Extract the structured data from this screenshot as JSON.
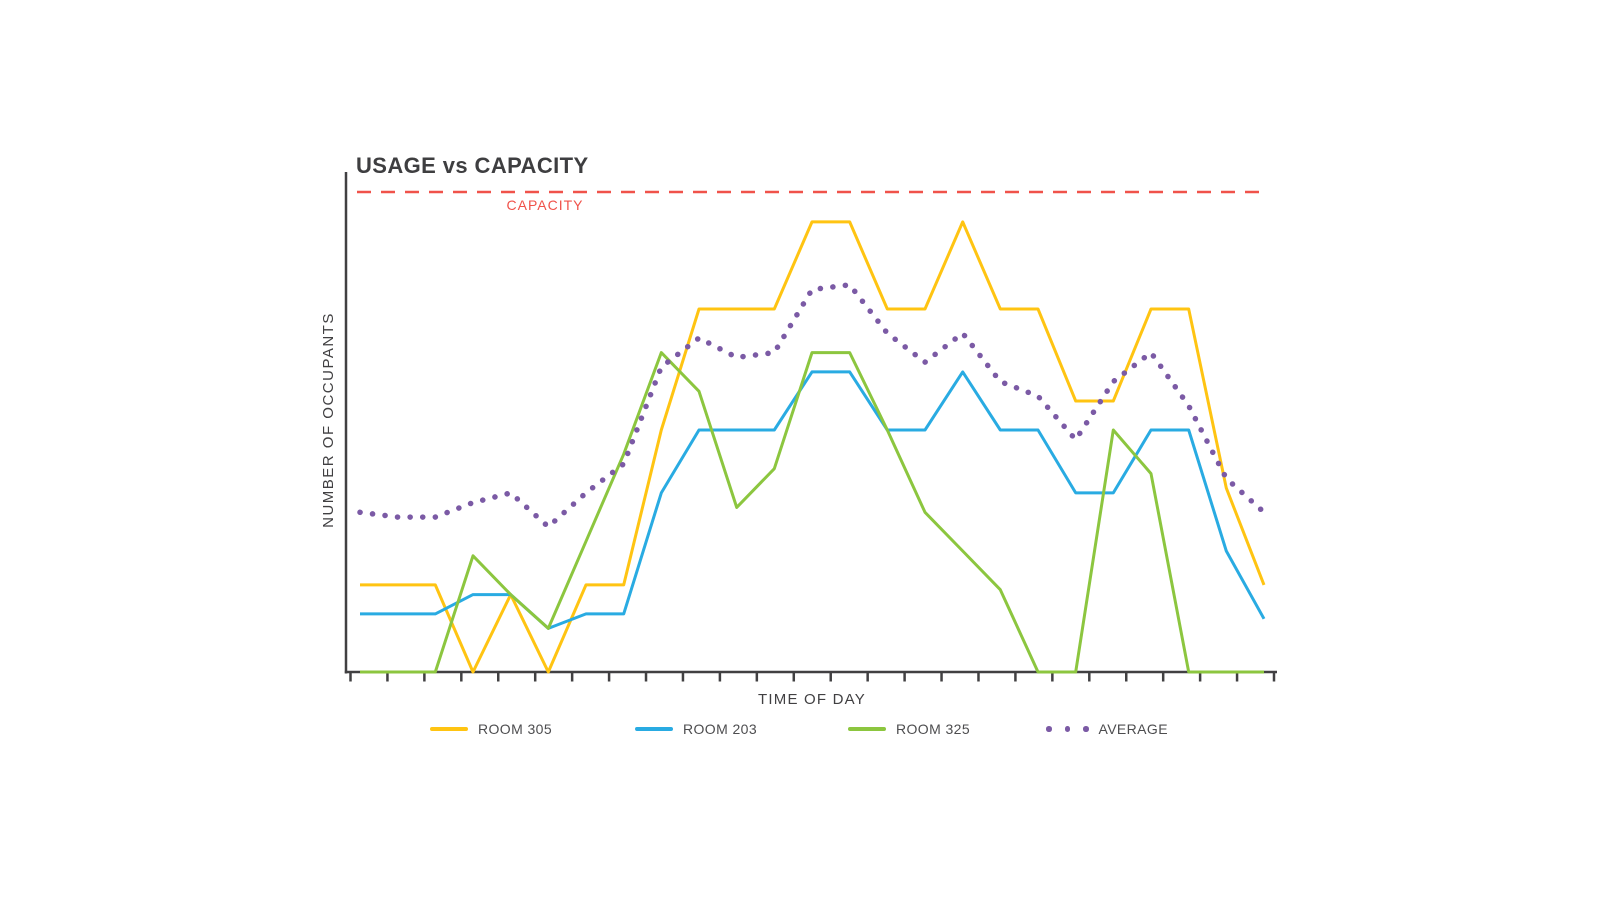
{
  "title": "USAGE vs CAPACITY",
  "capacity_label": "CAPACITY",
  "x_axis_label": "TIME OF DAY",
  "y_axis_label": "NUMBER OF OCCUPANTS",
  "colors": {
    "room305": "#ffc412",
    "room203": "#29abe2",
    "room325": "#8cc63f",
    "average": "#7b5aa5",
    "capacity": "#f0524a",
    "axis": "#414042",
    "title_text": "#3e3e40",
    "label_text": "#4d4d4f"
  },
  "chart_data": {
    "type": "line",
    "title": "USAGE vs CAPACITY",
    "xlabel": "TIME OF DAY",
    "ylabel": "NUMBER OF OCCUPANTS",
    "units": "percent_of_capacity",
    "ylim": [
      0,
      105
    ],
    "grid": false,
    "legend_position": "bottom",
    "x_axis": {
      "tick_count": 26,
      "tick_labels_visible": false
    },
    "y_axis": {
      "tick_labels_visible": false
    },
    "capacity_reference": {
      "label": "CAPACITY",
      "value": 100,
      "style": "dashed"
    },
    "x": [
      0,
      1,
      2,
      3,
      4,
      5,
      6,
      7,
      8,
      9,
      10,
      11,
      12,
      13,
      14,
      15,
      16,
      17,
      18,
      19,
      20,
      21,
      22,
      23,
      24
    ],
    "series": [
      {
        "name": "ROOM 305",
        "color": "#ffc412",
        "style": "solid",
        "values": [
          18,
          18,
          18,
          0,
          16,
          0,
          18,
          18,
          50,
          75,
          75,
          75,
          93,
          93,
          75,
          75,
          93,
          75,
          75,
          56,
          56,
          75,
          75,
          38,
          18
        ]
      },
      {
        "name": "ROOM 203",
        "color": "#29abe2",
        "style": "solid",
        "values": [
          12,
          12,
          12,
          16,
          16,
          9,
          12,
          12,
          37,
          50,
          50,
          50,
          62,
          62,
          50,
          50,
          62,
          50,
          50,
          37,
          37,
          50,
          50,
          25,
          11
        ]
      },
      {
        "name": "ROOM 325",
        "color": "#8cc63f",
        "style": "solid",
        "values": [
          0,
          0,
          0,
          24,
          16,
          9,
          27,
          45,
          66,
          58,
          34,
          42,
          66,
          66,
          50,
          33,
          25,
          17,
          0,
          0,
          50,
          41,
          0,
          0,
          0
        ]
      },
      {
        "name": "AVERAGE",
        "color": "#7b5aa5",
        "style": "dotted",
        "values": [
          33,
          32,
          32,
          35,
          37,
          30,
          37,
          43,
          63,
          69,
          65,
          66,
          79,
          80,
          70,
          64,
          70,
          60,
          57,
          48,
          60,
          66,
          55,
          40,
          33
        ]
      }
    ]
  }
}
